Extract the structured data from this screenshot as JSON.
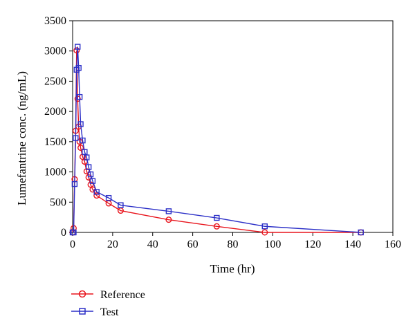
{
  "chart_data": {
    "type": "line",
    "xlabel": "Time (hr)",
    "ylabel": "Lumefantrine conc. (ng/mL)",
    "xlim": [
      0,
      160
    ],
    "ylim": [
      0,
      3500
    ],
    "xticks": [
      0,
      20,
      40,
      60,
      80,
      100,
      120,
      140,
      160
    ],
    "yticks": [
      0,
      500,
      1000,
      1500,
      2000,
      2500,
      3000,
      3500
    ],
    "grid": false,
    "legend_position": "bottom-left",
    "series": [
      {
        "name": "Reference",
        "color": "#e8131b",
        "marker": "circle",
        "x": [
          0,
          0.5,
          1,
          1.5,
          2,
          2.5,
          3,
          3.5,
          4,
          5,
          6,
          7,
          8,
          9,
          10,
          12,
          18,
          24,
          48,
          72,
          96,
          144
        ],
        "y": [
          0,
          70,
          880,
          1680,
          3010,
          2210,
          1750,
          1500,
          1400,
          1250,
          1170,
          1010,
          910,
          790,
          710,
          610,
          480,
          360,
          210,
          100,
          0,
          0
        ]
      },
      {
        "name": "Test",
        "color": "#2b2fc7",
        "marker": "square",
        "x": [
          0,
          0.5,
          1,
          1.5,
          2,
          2.5,
          3,
          3.5,
          4,
          5,
          6,
          7,
          8,
          9,
          10,
          12,
          18,
          24,
          48,
          72,
          96,
          144
        ],
        "y": [
          0,
          0,
          800,
          1560,
          2690,
          3070,
          2720,
          2240,
          1790,
          1520,
          1330,
          1240,
          1080,
          960,
          850,
          670,
          570,
          450,
          350,
          240,
          100,
          0
        ]
      }
    ]
  }
}
